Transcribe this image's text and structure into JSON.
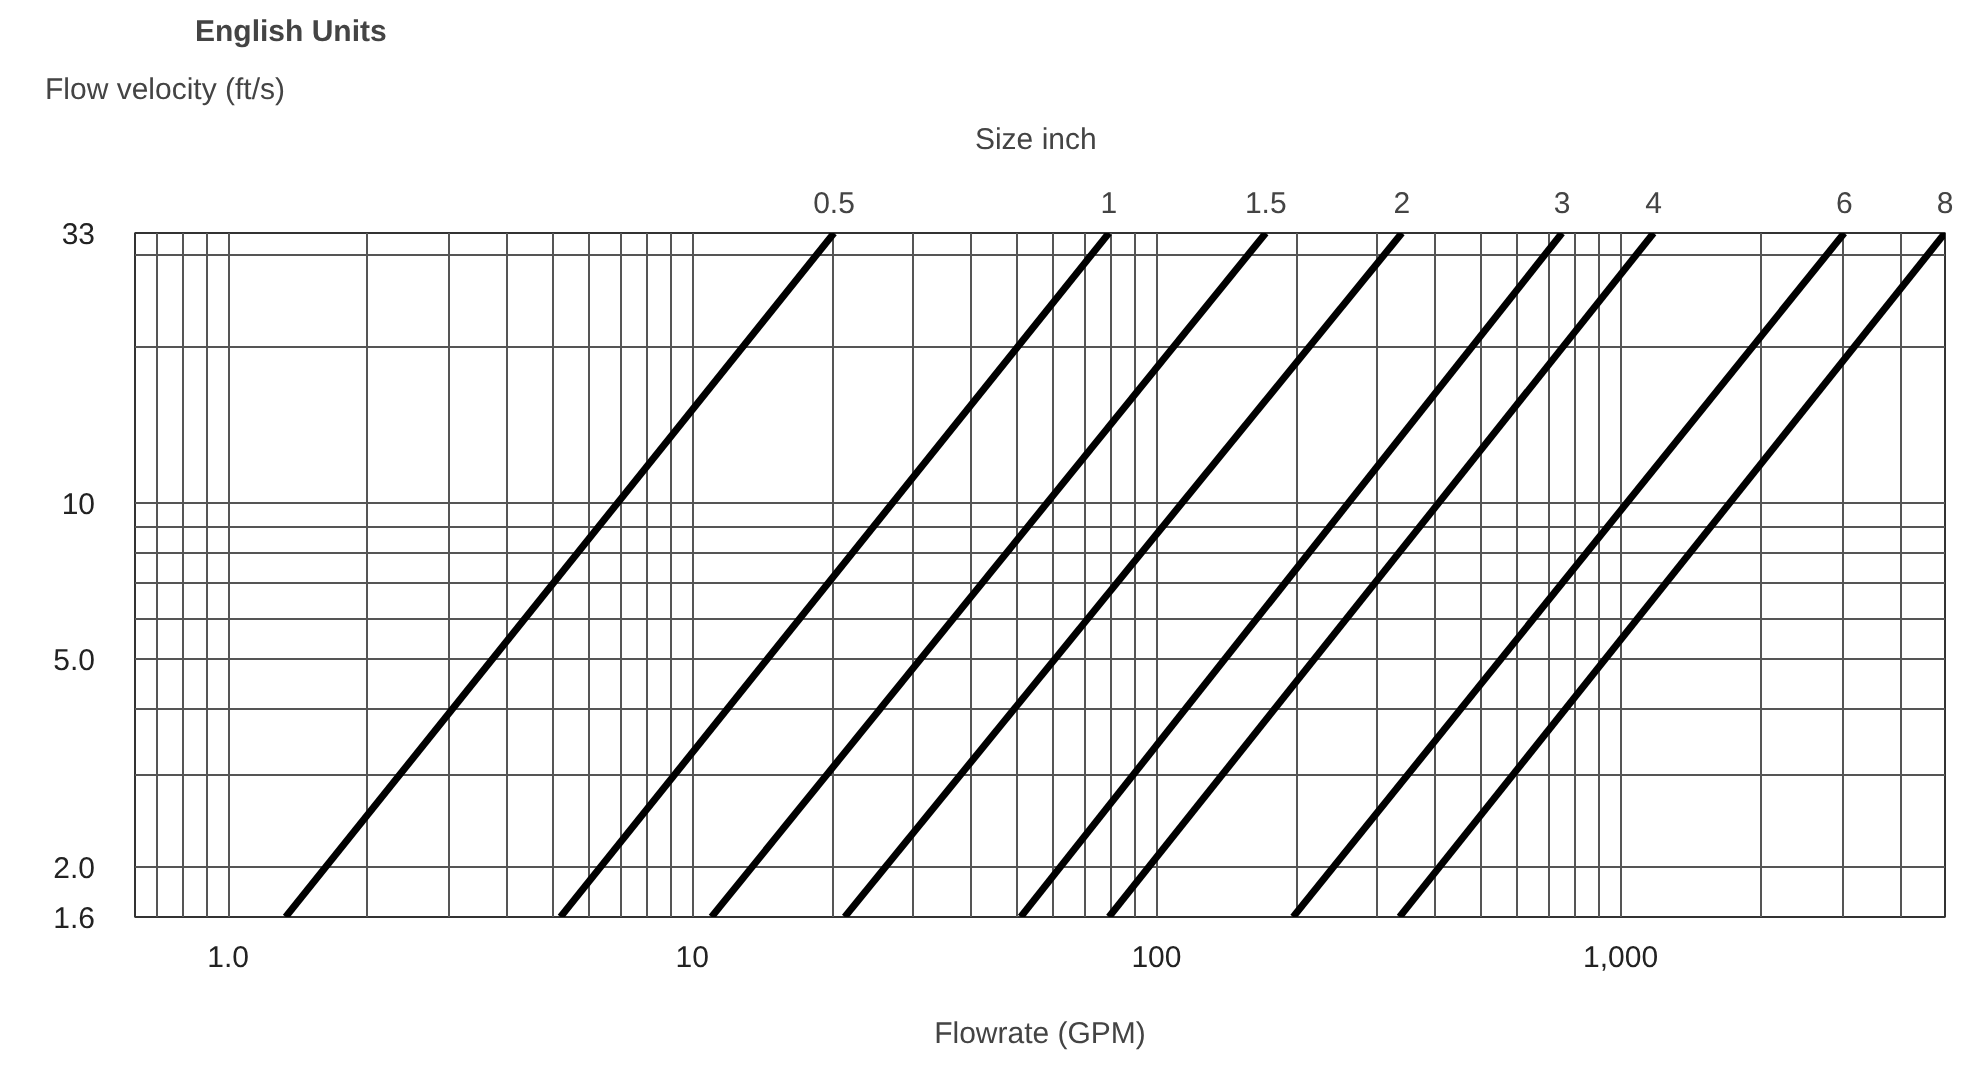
{
  "chart_data": {
    "type": "line",
    "title": "English Units",
    "legend_title": "Size  inch",
    "xlabel": "Flowrate (GPM)",
    "ylabel": "Flow velocity (ft/s)",
    "log": "xy",
    "grid": true,
    "marker": "none",
    "line_style": "solid",
    "xlim": [
      0.63,
      5000
    ],
    "ylim": [
      1.6,
      33
    ],
    "xticks": [
      {
        "value": 0.7,
        "label": null
      },
      {
        "value": 0.8,
        "label": null
      },
      {
        "value": 0.9,
        "label": null
      },
      {
        "value": 1,
        "label": "1.0"
      },
      {
        "value": 2,
        "label": null
      },
      {
        "value": 3,
        "label": null
      },
      {
        "value": 4,
        "label": null
      },
      {
        "value": 5,
        "label": null
      },
      {
        "value": 6,
        "label": null
      },
      {
        "value": 7,
        "label": null
      },
      {
        "value": 8,
        "label": null
      },
      {
        "value": 9,
        "label": null
      },
      10,
      {
        "value": 20,
        "label": null
      },
      {
        "value": 30,
        "label": null
      },
      {
        "value": 40,
        "label": null
      },
      {
        "value": 50,
        "label": null
      },
      {
        "value": 60,
        "label": null
      },
      {
        "value": 70,
        "label": null
      },
      {
        "value": 80,
        "label": null
      },
      {
        "value": 90,
        "label": null
      },
      100,
      {
        "value": 200,
        "label": null
      },
      {
        "value": 300,
        "label": null
      },
      {
        "value": 400,
        "label": null
      },
      {
        "value": 500,
        "label": null
      },
      {
        "value": 600,
        "label": null
      },
      {
        "value": 700,
        "label": null
      },
      {
        "value": 800,
        "label": null
      },
      {
        "value": 900,
        "label": null
      },
      {
        "value": 1000,
        "label": "1,000"
      },
      {
        "value": 2000,
        "label": null
      },
      {
        "value": 3000,
        "label": null
      },
      {
        "value": 4000,
        "label": null
      }
    ],
    "yticks": [
      1.6,
      {
        "value": 2,
        "label": "2.0"
      },
      {
        "value": 3,
        "label": null
      },
      {
        "value": 4,
        "label": null
      },
      {
        "value": 5,
        "label": "5.0"
      },
      {
        "value": 6,
        "label": null
      },
      {
        "value": 7,
        "label": null
      },
      {
        "value": 8,
        "label": null
      },
      {
        "value": 9,
        "label": null
      },
      10,
      {
        "value": 20,
        "label": null
      },
      {
        "value": 30,
        "label": null
      },
      33
    ],
    "series": [
      {
        "name": "0.5",
        "color": "#000000",
        "x": [
          1.33,
          20.2
        ],
        "values": [
          1.6,
          33
        ]
      },
      {
        "name": "1",
        "color": "#000000",
        "x": [
          5.2,
          79
        ],
        "values": [
          1.6,
          33
        ]
      },
      {
        "name": "1.5",
        "color": "#000000",
        "x": [
          11,
          172
        ],
        "values": [
          1.6,
          33
        ]
      },
      {
        "name": "2",
        "color": "#000000",
        "x": [
          21.3,
          338
        ],
        "values": [
          1.6,
          33
        ]
      },
      {
        "name": "3",
        "color": "#000000",
        "x": [
          51,
          748
        ],
        "values": [
          1.6,
          33
        ]
      },
      {
        "name": "4",
        "color": "#000000",
        "x": [
          79,
          1178
        ],
        "values": [
          1.6,
          33
        ]
      },
      {
        "name": "6",
        "color": "#000000",
        "x": [
          197,
          3033
        ],
        "values": [
          1.6,
          33
        ]
      },
      {
        "name": "8",
        "color": "#000000",
        "x": [
          334,
          5000
        ],
        "values": [
          1.6,
          33
        ]
      }
    ]
  }
}
